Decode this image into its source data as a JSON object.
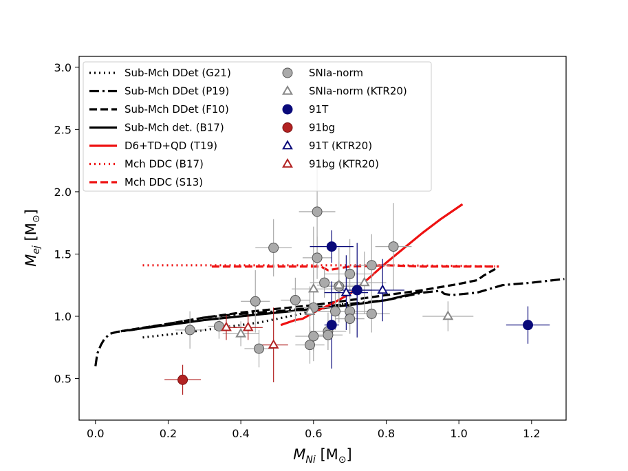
{
  "chart_data": {
    "type": "scatter",
    "xlim": [
      -0.045,
      1.295
    ],
    "ylim": [
      0.1663,
      3.0872
    ],
    "xticks": [
      "0.0",
      "0.2",
      "0.4",
      "0.6",
      "0.8",
      "1.0",
      "1.2"
    ],
    "yticks": [
      "0.5",
      "1.0",
      "1.5",
      "2.0",
      "2.5",
      "3.0"
    ],
    "xlabel": {
      "main": "M",
      "sub": "Ni",
      "unit": " [M",
      "unit_sub": "⊙",
      "close": "]"
    },
    "ylabel": {
      "main": "M",
      "sub": "ej",
      "unit": " [M",
      "unit_sub": "⊙",
      "close": "]"
    },
    "legend_position": "upper-left",
    "lines": [
      {
        "name": "Sub-Mch DDet (G21)",
        "color": "#000000",
        "style": "dotted",
        "x": [
          0.13,
          0.25,
          0.35,
          0.45,
          0.55,
          0.65,
          0.7
        ],
        "y": [
          0.83,
          0.87,
          0.91,
          0.95,
          1.01,
          1.08,
          1.11
        ]
      },
      {
        "name": "Sub-Mch DDet (P19)",
        "color": "#000000",
        "style": "dashdot",
        "x": [
          0.0,
          0.005,
          0.015,
          0.025,
          0.04,
          0.06,
          0.1,
          0.2,
          0.3,
          0.4,
          0.5,
          0.6,
          0.7,
          0.8,
          0.9,
          0.95,
          0.96,
          0.98,
          1.05,
          1.12,
          1.2,
          1.29
        ],
        "y": [
          0.6,
          0.7,
          0.77,
          0.82,
          0.86,
          0.875,
          0.89,
          0.94,
          0.99,
          1.02,
          1.04,
          1.07,
          1.1,
          1.13,
          1.19,
          1.205,
          1.18,
          1.17,
          1.19,
          1.25,
          1.27,
          1.3
        ]
      },
      {
        "name": "Sub-Mch DDet (F10)",
        "color": "#000000",
        "style": "dashed",
        "x": [
          0.07,
          0.2,
          0.3,
          0.4,
          0.5,
          0.6,
          0.7,
          0.8,
          0.9,
          1.0,
          1.05,
          1.07,
          1.1
        ],
        "y": [
          0.88,
          0.94,
          0.99,
          1.03,
          1.06,
          1.09,
          1.13,
          1.17,
          1.21,
          1.26,
          1.29,
          1.33,
          1.38
        ]
      },
      {
        "name": "Sub-Mch det. (B17)",
        "color": "#000000",
        "style": "solid",
        "x": [
          0.07,
          0.2,
          0.3,
          0.4,
          0.5,
          0.6,
          0.7,
          0.8,
          0.9
        ],
        "y": [
          0.88,
          0.93,
          0.97,
          1.0,
          1.03,
          1.06,
          1.09,
          1.13,
          1.2
        ]
      },
      {
        "name": "D6+TD+QD (T19)",
        "color": "#ee1111",
        "style": "solid",
        "x": [
          0.51,
          0.55,
          0.57,
          0.6,
          0.65,
          0.7,
          0.75,
          0.8,
          0.85,
          0.9,
          0.95,
          1.01
        ],
        "y": [
          0.93,
          0.97,
          0.98,
          1.03,
          1.1,
          1.18,
          1.3,
          1.43,
          1.55,
          1.67,
          1.78,
          1.9
        ]
      },
      {
        "name": "Mch DDC (B17)",
        "color": "#ee1111",
        "style": "dotted",
        "x": [
          0.13,
          0.4,
          0.6,
          0.8,
          1.0,
          1.1
        ],
        "y": [
          1.41,
          1.41,
          1.41,
          1.41,
          1.405,
          1.4
        ]
      },
      {
        "name": "Mch DDC (S13)",
        "color": "#ee1111",
        "style": "dashed",
        "x": [
          0.32,
          0.5,
          0.62,
          0.64,
          0.7,
          0.8,
          0.9,
          1.0,
          1.11
        ],
        "y": [
          1.4,
          1.4,
          1.4,
          1.37,
          1.4,
          1.41,
          1.4,
          1.4,
          1.4
        ]
      }
    ],
    "point_series": [
      {
        "name": "SNIa-norm",
        "marker": "circle",
        "fill": "#aaaaaa",
        "stroke": "#555555",
        "err_color": "#aaaaaa",
        "points": [
          {
            "x": 0.61,
            "y": 1.84,
            "xerr": 0.05,
            "yerr": 0.4
          },
          {
            "x": 0.49,
            "y": 1.55,
            "xerr": 0.05,
            "yerr": 0.23
          },
          {
            "x": 0.82,
            "y": 1.56,
            "xerr": 0.05,
            "yerr": 0.35
          },
          {
            "x": 0.61,
            "y": 1.47,
            "xerr": 0.04,
            "yerr": 0.17
          },
          {
            "x": 0.76,
            "y": 1.41,
            "xerr": 0.05,
            "yerr": 0.25
          },
          {
            "x": 0.7,
            "y": 1.34,
            "xerr": 0.07,
            "yerr": 0.28
          },
          {
            "x": 0.63,
            "y": 1.27,
            "xerr": 0.04,
            "yerr": 0.12
          },
          {
            "x": 0.67,
            "y": 1.24,
            "xerr": 0.05,
            "yerr": 0.2
          },
          {
            "x": 0.72,
            "y": 1.21,
            "xerr": 0.05,
            "yerr": 0.15
          },
          {
            "x": 0.55,
            "y": 1.13,
            "xerr": 0.04,
            "yerr": 0.18
          },
          {
            "x": 0.44,
            "y": 1.12,
            "xerr": 0.04,
            "yerr": 0.25
          },
          {
            "x": 0.6,
            "y": 1.07,
            "xerr": 0.05,
            "yerr": 0.3
          },
          {
            "x": 0.66,
            "y": 1.04,
            "xerr": 0.05,
            "yerr": 0.15
          },
          {
            "x": 0.7,
            "y": 1.04,
            "xerr": 0.05,
            "yerr": 0.18
          },
          {
            "x": 0.76,
            "y": 1.02,
            "xerr": 0.05,
            "yerr": 0.15
          },
          {
            "x": 0.7,
            "y": 0.98,
            "xerr": 0.04,
            "yerr": 0.12
          },
          {
            "x": 0.26,
            "y": 0.89,
            "xerr": 0.04,
            "yerr": 0.15
          },
          {
            "x": 0.34,
            "y": 0.92,
            "xerr": 0.03,
            "yerr": 0.1
          },
          {
            "x": 0.64,
            "y": 0.88,
            "xerr": 0.05,
            "yerr": 0.15
          },
          {
            "x": 0.64,
            "y": 0.85,
            "xerr": 0.04,
            "yerr": 0.12
          },
          {
            "x": 0.6,
            "y": 0.84,
            "xerr": 0.05,
            "yerr": 0.2
          },
          {
            "x": 0.59,
            "y": 0.77,
            "xerr": 0.04,
            "yerr": 0.15
          },
          {
            "x": 0.45,
            "y": 0.74,
            "xerr": 0.04,
            "yerr": 0.15
          }
        ]
      },
      {
        "name": "SNIa-norm (KTR20)",
        "marker": "triangle",
        "fill": "#ffffff",
        "stroke": "#888888",
        "err_color": "#aaaaaa",
        "points": [
          {
            "x": 0.6,
            "y": 1.22,
            "xerr": 0.06,
            "yerr": 0.5
          },
          {
            "x": 0.67,
            "y": 1.25,
            "xerr": 0.06,
            "yerr": 0.3
          },
          {
            "x": 0.74,
            "y": 1.27,
            "xerr": 0.06,
            "yerr": 0.25
          },
          {
            "x": 0.59,
            "y": 1.04,
            "xerr": 0.06,
            "yerr": 0.2
          },
          {
            "x": 0.97,
            "y": 1.0,
            "xerr": 0.07,
            "yerr": 0.12
          },
          {
            "x": 0.4,
            "y": 0.86,
            "xerr": 0.05,
            "yerr": 0.1
          }
        ]
      },
      {
        "name": "91T",
        "marker": "circle",
        "fill": "#0a0a7a",
        "stroke": "#0a0a7a",
        "err_color": "#0a0a7a",
        "points": [
          {
            "x": 0.65,
            "y": 1.56,
            "xerr": 0.06,
            "yerr": 0.13
          },
          {
            "x": 0.72,
            "y": 1.21,
            "xerr": 0.04,
            "yerr": 0.38
          },
          {
            "x": 0.65,
            "y": 0.93,
            "xerr": 0.02,
            "yerr": 0.35
          },
          {
            "x": 1.19,
            "y": 0.93,
            "xerr": 0.06,
            "yerr": 0.15
          }
        ]
      },
      {
        "name": "91bg",
        "marker": "circle",
        "fill": "#b22222",
        "stroke": "#7a1010",
        "err_color": "#b22222",
        "points": [
          {
            "x": 0.24,
            "y": 0.49,
            "xerr": 0.05,
            "yerr": 0.12
          }
        ]
      },
      {
        "name": "91T (KTR20)",
        "marker": "triangle",
        "fill": "#ffffff",
        "stroke": "#0a0a7a",
        "err_color": "#0a0a7a",
        "points": [
          {
            "x": 0.69,
            "y": 1.19,
            "xerr": 0.06,
            "yerr": 0.3
          },
          {
            "x": 0.79,
            "y": 1.21,
            "xerr": 0.06,
            "yerr": 0.25
          }
        ]
      },
      {
        "name": "91bg (KTR20)",
        "marker": "triangle",
        "fill": "#ffffff",
        "stroke": "#b22222",
        "err_color": "#b22222",
        "points": [
          {
            "x": 0.36,
            "y": 0.91,
            "xerr": 0.03,
            "yerr": 0.1
          },
          {
            "x": 0.42,
            "y": 0.91,
            "xerr": 0.04,
            "yerr": 0.1
          },
          {
            "x": 0.49,
            "y": 0.77,
            "xerr": 0.04,
            "yerr": 0.3
          }
        ]
      }
    ]
  }
}
